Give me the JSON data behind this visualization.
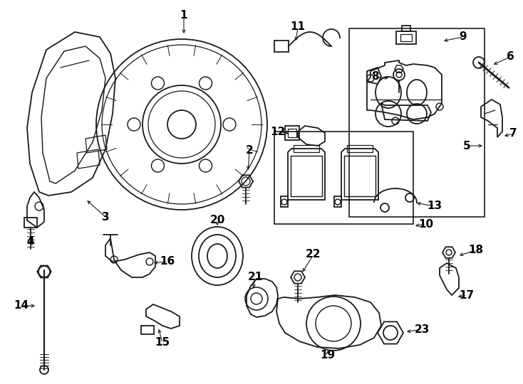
{
  "background_color": "#ffffff",
  "line_color": "#1a1a1a",
  "figsize": [
    7.34,
    5.4
  ],
  "dpi": 100,
  "xlim": [
    0,
    734
  ],
  "ylim": [
    0,
    540
  ]
}
